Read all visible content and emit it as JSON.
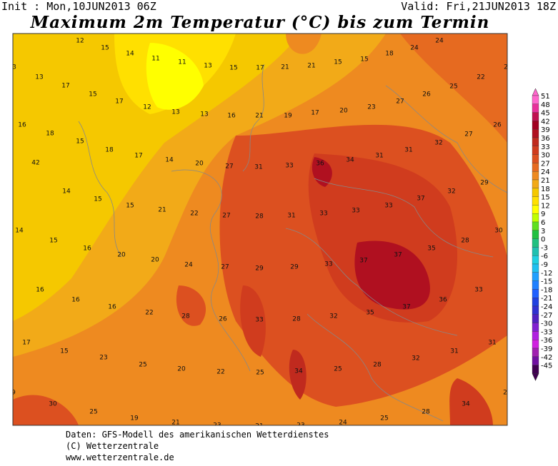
{
  "header": {
    "init": "Init : Mon,10JUN2013 06Z",
    "valid": "Valid: Fri,21JUN2013 18Z",
    "title": "Maximum 2m Temperatur (°C) bis zum Termin"
  },
  "map": {
    "values": [
      12,
      15,
      14,
      11,
      11,
      13,
      15,
      17,
      21,
      21,
      15,
      15,
      18,
      24,
      24,
      3,
      13,
      17,
      15,
      17,
      12,
      13,
      13,
      16,
      21,
      19,
      17,
      20,
      23,
      27,
      26,
      25,
      22,
      2,
      16,
      18,
      15,
      18,
      17,
      14,
      20,
      27,
      31,
      33,
      36,
      34,
      31,
      31,
      32,
      27,
      26,
      42,
      14,
      15,
      15,
      21,
      22,
      27,
      28,
      31,
      33,
      33,
      33,
      37,
      32,
      29,
      14,
      15,
      16,
      20,
      20,
      24,
      27,
      29,
      29,
      33,
      37,
      37,
      35,
      28,
      30,
      16,
      16,
      16,
      22,
      28,
      26,
      33,
      28,
      32,
      35,
      37,
      36,
      33,
      17,
      15,
      23,
      25,
      20,
      22,
      25,
      34,
      25,
      28,
      32,
      31,
      31,
      9,
      30,
      25,
      19,
      21,
      23,
      21,
      23,
      24,
      25,
      28,
      34,
      2
    ]
  },
  "colorbar": {
    "labels": [
      51,
      48,
      45,
      42,
      39,
      36,
      33,
      30,
      27,
      24,
      21,
      18,
      15,
      12,
      9,
      6,
      3,
      0,
      -3,
      -6,
      -9,
      -12,
      -15,
      -18,
      -21,
      -24,
      -27,
      -30,
      -33,
      -36,
      -39,
      -42,
      -45
    ],
    "colors": [
      "#ff66cc",
      "#e8309a",
      "#c01050",
      "#a00020",
      "#b01020",
      "#c02a1e",
      "#d03c1e",
      "#dc5020",
      "#e66a20",
      "#ee8a20",
      "#f2aa18",
      "#f5c800",
      "#ffe000",
      "#ffff00",
      "#c0ff00",
      "#60e020",
      "#20c040",
      "#20c080",
      "#20c0b0",
      "#20d0e0",
      "#20c0f0",
      "#20a0ff",
      "#2080ff",
      "#2060ff",
      "#2040e0",
      "#3030d0",
      "#5020c0",
      "#8020d0",
      "#b020e0",
      "#d020e0",
      "#a020b0",
      "#7010a0",
      "#400050"
    ]
  },
  "footer": {
    "line1": "Daten: GFS-Modell des amerikanischen Wetterdienstes",
    "line2": "(C) Wetterzentrale",
    "line3": "www.wetterzentrale.de"
  }
}
